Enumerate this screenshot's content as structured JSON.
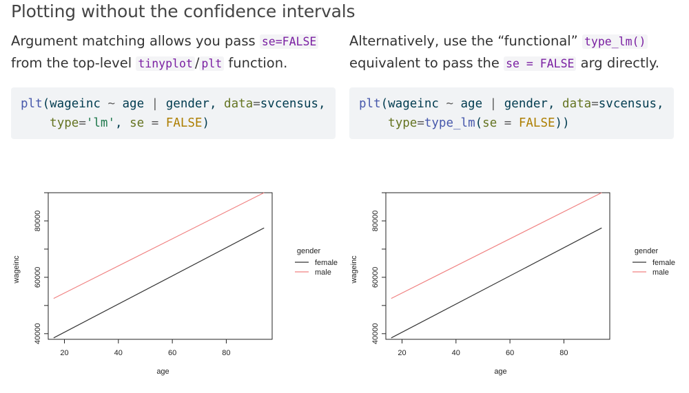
{
  "slide": {
    "title": "Plotting without the confidence intervals"
  },
  "left": {
    "text_1": "Argument matching allows you pass ",
    "code_1": "se=FALSE",
    "text_2": "from the top-level ",
    "code_2": "tinyplot",
    "sep": "/",
    "code_3": "plt",
    "text_3": " function.",
    "code_block": {
      "l1_fn": "plt",
      "l1_a": "(wageinc ",
      "l1_tilde": "~",
      "l1_b": " age ",
      "l1_bar": "|",
      "l1_c": " gender, ",
      "l1_argn": "data",
      "l1_eq": "=",
      "l1_d": "svcensus,",
      "l2_indent": "    ",
      "l2_argn": "type",
      "l2_eq": "=",
      "l2_str": "'lm'",
      "l2_a": ", ",
      "l2_argn2": "se",
      "l2_eq2": " = ",
      "l2_kw": "FALSE",
      "l2_close": ")"
    }
  },
  "right": {
    "text_1": "Alternatively, use the “functional” ",
    "code_1": "type_lm()",
    "text_2": "equivalent to pass the ",
    "code_2": "se = FALSE",
    "text_3": " arg directly.",
    "code_block": {
      "l1_fn": "plt",
      "l1_a": "(wageinc ",
      "l1_tilde": "~",
      "l1_b": " age ",
      "l1_bar": "|",
      "l1_c": " gender, ",
      "l1_argn": "data",
      "l1_eq": "=",
      "l1_d": "svcensus,",
      "l2_indent": "    ",
      "l2_argn": "type",
      "l2_eq": "=",
      "l2_fn": "type_lm",
      "l2_a": "(",
      "l2_argn2": "se",
      "l2_eq2": " = ",
      "l2_kw": "FALSE",
      "l2_close": "))"
    }
  },
  "chart_data": [
    {
      "type": "line",
      "xlabel": "age",
      "ylabel": "wageinc",
      "xlim": [
        14,
        97
      ],
      "ylim": [
        38000,
        90000
      ],
      "xticks": [
        20,
        40,
        60,
        80
      ],
      "yticks": [
        40000,
        60000,
        80000
      ],
      "legend": {
        "title": "gender",
        "placement": "right"
      },
      "series": [
        {
          "name": "female",
          "color": "#333333",
          "x": [
            16,
            94
          ],
          "y": [
            38500,
            77500
          ]
        },
        {
          "name": "male",
          "color": "#f08080",
          "x": [
            16,
            94
          ],
          "y": [
            52500,
            90000
          ]
        }
      ]
    },
    {
      "type": "line",
      "xlabel": "age",
      "ylabel": "wageinc",
      "xlim": [
        14,
        97
      ],
      "ylim": [
        38000,
        90000
      ],
      "xticks": [
        20,
        40,
        60,
        80
      ],
      "yticks": [
        40000,
        60000,
        80000
      ],
      "legend": {
        "title": "gender",
        "placement": "right"
      },
      "series": [
        {
          "name": "female",
          "color": "#333333",
          "x": [
            16,
            94
          ],
          "y": [
            38500,
            77500
          ]
        },
        {
          "name": "male",
          "color": "#f08080",
          "x": [
            16,
            94
          ],
          "y": [
            52500,
            90000
          ]
        }
      ]
    }
  ]
}
